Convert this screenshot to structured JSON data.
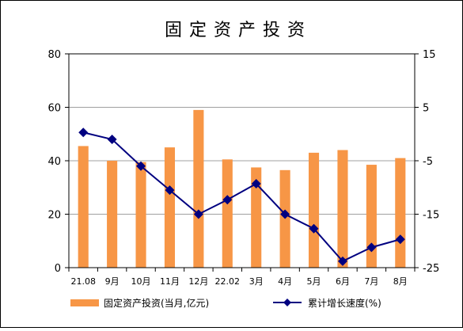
{
  "chart_data": {
    "type": "bar+line",
    "title": "固定资产投资",
    "categories": [
      "21.08",
      "9月",
      "10月",
      "11月",
      "12月",
      "22.02",
      "3月",
      "4月",
      "5月",
      "6月",
      "7月",
      "8月"
    ],
    "series": [
      {
        "name": "固定资产投资(当月,亿元)",
        "type": "bar",
        "axis": "left",
        "color": "#f79646",
        "values": [
          45.5,
          40,
          39.5,
          45,
          59,
          40.5,
          37.5,
          36.5,
          43,
          44,
          38.5,
          41
        ]
      },
      {
        "name": "累计增长速度(%)",
        "type": "line",
        "axis": "right",
        "color": "#000080",
        "values": [
          0.3,
          -1,
          -6,
          -10.5,
          -15,
          -12.3,
          -9.3,
          -15,
          -17.7,
          -23.8,
          -21.2,
          -19.7
        ]
      }
    ],
    "y_left": {
      "min": 0,
      "max": 80,
      "ticks": [
        0,
        20,
        40,
        60,
        80
      ]
    },
    "y_right": {
      "min": -25,
      "max": 15,
      "ticks": [
        -25,
        -15,
        -5,
        5,
        15
      ]
    },
    "grid": true,
    "legend_position": "bottom"
  }
}
